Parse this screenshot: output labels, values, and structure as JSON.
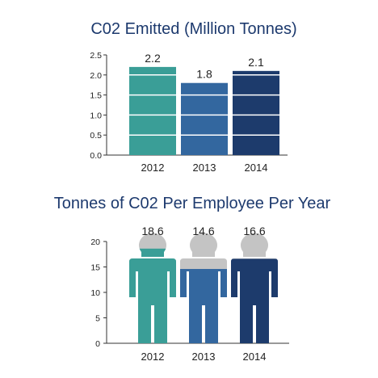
{
  "chart_data": [
    {
      "type": "bar",
      "title": "C02 Emitted (Million Tonnes)",
      "categories": [
        "2012",
        "2013",
        "2014"
      ],
      "values": [
        2.2,
        1.8,
        2.1
      ],
      "data_labels": [
        "2.2",
        "1.8",
        "2.1"
      ],
      "ylim": [
        0,
        2.5
      ],
      "yticks": [
        "0.0",
        "0.5",
        "1.0",
        "1.5",
        "2.0",
        "2.5"
      ],
      "grid": false,
      "colors": [
        "#3a9e97",
        "#33679f",
        "#1d3b6c"
      ]
    },
    {
      "type": "bar",
      "style": "pictograph-person",
      "title": "Tonnes of C02 Per Employee Per Year",
      "categories": [
        "2012",
        "2013",
        "2014"
      ],
      "values": [
        18.6,
        14.6,
        16.6
      ],
      "data_labels": [
        "18.6",
        "14.6",
        "16.6"
      ],
      "ylim": [
        0,
        20
      ],
      "yticks": [
        "0",
        "5",
        "10",
        "15",
        "20"
      ],
      "grid": false,
      "colors": [
        "#3a9e97",
        "#33679f",
        "#1d3b6c"
      ],
      "unfilled_color": "#c4c4c4"
    }
  ]
}
